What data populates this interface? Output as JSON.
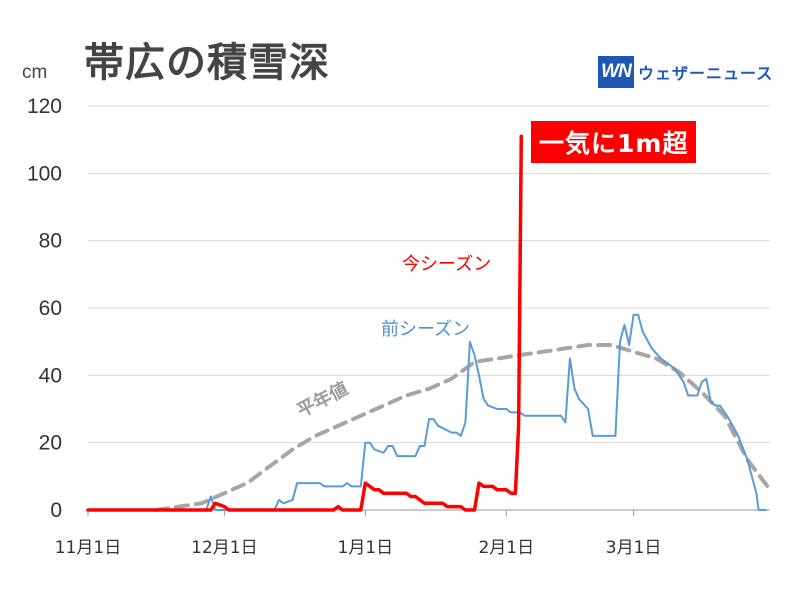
{
  "title": "帯広の積雪深",
  "unit": "cm",
  "logo": {
    "mark": "WN",
    "text": "ウェザーニュース"
  },
  "banner": "一気に1m超",
  "colors": {
    "current": "#ff0000",
    "previous": "#5b9bd5",
    "normal": "#a6a6a6",
    "grid": "#d9d9d9",
    "logo": "#1f57b5"
  },
  "chart_data": {
    "type": "line",
    "x_start": "11月1日",
    "xlabels": [
      "11月1日",
      "12月1日",
      "1月1日",
      "2月1日",
      "3月1日"
    ],
    "xlabel_days": [
      0,
      30,
      61,
      92,
      120
    ],
    "x_range_days": [
      0,
      150
    ],
    "ylim": [
      0,
      120
    ],
    "yticks": [
      0,
      20,
      40,
      60,
      80,
      100,
      120
    ],
    "grid": true,
    "series": [
      {
        "name": "今シーズン",
        "color": "#ff0000",
        "points": [
          [
            0,
            0
          ],
          [
            27,
            0
          ],
          [
            28,
            2
          ],
          [
            30,
            1
          ],
          [
            31,
            0
          ],
          [
            54,
            0
          ],
          [
            55,
            1
          ],
          [
            56,
            0
          ],
          [
            60,
            0
          ],
          [
            61,
            8
          ],
          [
            62,
            7
          ],
          [
            63,
            6
          ],
          [
            64,
            6
          ],
          [
            65,
            5
          ],
          [
            66,
            5
          ],
          [
            70,
            5
          ],
          [
            71,
            4
          ],
          [
            72,
            4
          ],
          [
            73,
            3
          ],
          [
            74,
            2
          ],
          [
            77,
            2
          ],
          [
            78,
            2
          ],
          [
            79,
            1
          ],
          [
            82,
            1
          ],
          [
            83,
            0
          ],
          [
            84,
            0
          ],
          [
            85,
            0
          ],
          [
            86,
            8
          ],
          [
            87,
            7
          ],
          [
            89,
            7
          ],
          [
            90,
            6
          ],
          [
            92,
            6
          ],
          [
            93,
            5
          ],
          [
            94,
            5
          ],
          [
            94.7,
            25
          ],
          [
            95.3,
            111
          ]
        ]
      },
      {
        "name": "前シーズン",
        "color": "#5b9bd5",
        "points": [
          [
            0,
            0
          ],
          [
            26,
            0
          ],
          [
            27,
            4
          ],
          [
            28,
            0
          ],
          [
            41,
            0
          ],
          [
            42,
            3
          ],
          [
            43,
            2
          ],
          [
            45,
            3
          ],
          [
            46,
            8
          ],
          [
            51,
            8
          ],
          [
            52,
            7
          ],
          [
            56,
            7
          ],
          [
            57,
            8
          ],
          [
            58,
            7
          ],
          [
            60,
            7
          ],
          [
            61,
            20
          ],
          [
            62,
            20
          ],
          [
            63,
            18
          ],
          [
            65,
            17
          ],
          [
            66,
            19
          ],
          [
            67,
            19
          ],
          [
            68,
            16
          ],
          [
            72,
            16
          ],
          [
            73,
            19
          ],
          [
            74,
            19
          ],
          [
            75,
            27
          ],
          [
            76,
            27
          ],
          [
            77,
            25
          ],
          [
            80,
            23
          ],
          [
            81,
            23
          ],
          [
            82,
            22
          ],
          [
            83,
            26
          ],
          [
            84,
            50
          ],
          [
            85,
            46
          ],
          [
            86,
            40
          ],
          [
            87,
            33
          ],
          [
            88,
            31
          ],
          [
            90,
            30
          ],
          [
            92,
            30
          ],
          [
            93,
            29
          ],
          [
            95,
            29
          ],
          [
            96,
            28
          ],
          [
            104,
            28
          ],
          [
            105,
            26
          ],
          [
            106,
            45
          ],
          [
            107,
            36
          ],
          [
            108,
            33
          ],
          [
            110,
            30
          ],
          [
            111,
            22
          ],
          [
            112,
            22
          ],
          [
            116,
            22
          ],
          [
            117,
            50
          ],
          [
            118,
            55
          ],
          [
            119,
            49
          ],
          [
            120,
            58
          ],
          [
            121,
            58
          ],
          [
            122,
            53
          ],
          [
            124,
            48
          ],
          [
            126,
            45
          ],
          [
            128,
            43
          ],
          [
            129,
            42
          ],
          [
            130,
            40
          ],
          [
            131,
            38
          ],
          [
            132,
            34
          ],
          [
            134,
            34
          ],
          [
            135,
            38
          ],
          [
            136,
            39
          ],
          [
            137,
            32
          ],
          [
            138,
            31
          ],
          [
            139,
            31
          ],
          [
            141,
            27
          ],
          [
            143,
            22
          ],
          [
            145,
            15
          ],
          [
            147,
            5
          ],
          [
            147.5,
            0
          ],
          [
            149,
            0
          ]
        ]
      },
      {
        "name": "平年値",
        "color": "#a6a6a6",
        "dashed": true,
        "points": [
          [
            15,
            0
          ],
          [
            20,
            1
          ],
          [
            25,
            2
          ],
          [
            30,
            5
          ],
          [
            35,
            8
          ],
          [
            40,
            13
          ],
          [
            45,
            18
          ],
          [
            50,
            22
          ],
          [
            55,
            25
          ],
          [
            60,
            28
          ],
          [
            65,
            31
          ],
          [
            70,
            34
          ],
          [
            75,
            36
          ],
          [
            80,
            39
          ],
          [
            85,
            44
          ],
          [
            90,
            45
          ],
          [
            95,
            46
          ],
          [
            100,
            47
          ],
          [
            105,
            48
          ],
          [
            110,
            49
          ],
          [
            115,
            49
          ],
          [
            120,
            47
          ],
          [
            125,
            45
          ],
          [
            130,
            41
          ],
          [
            135,
            35
          ],
          [
            140,
            28
          ],
          [
            145,
            15
          ],
          [
            150,
            6
          ]
        ]
      }
    ]
  }
}
